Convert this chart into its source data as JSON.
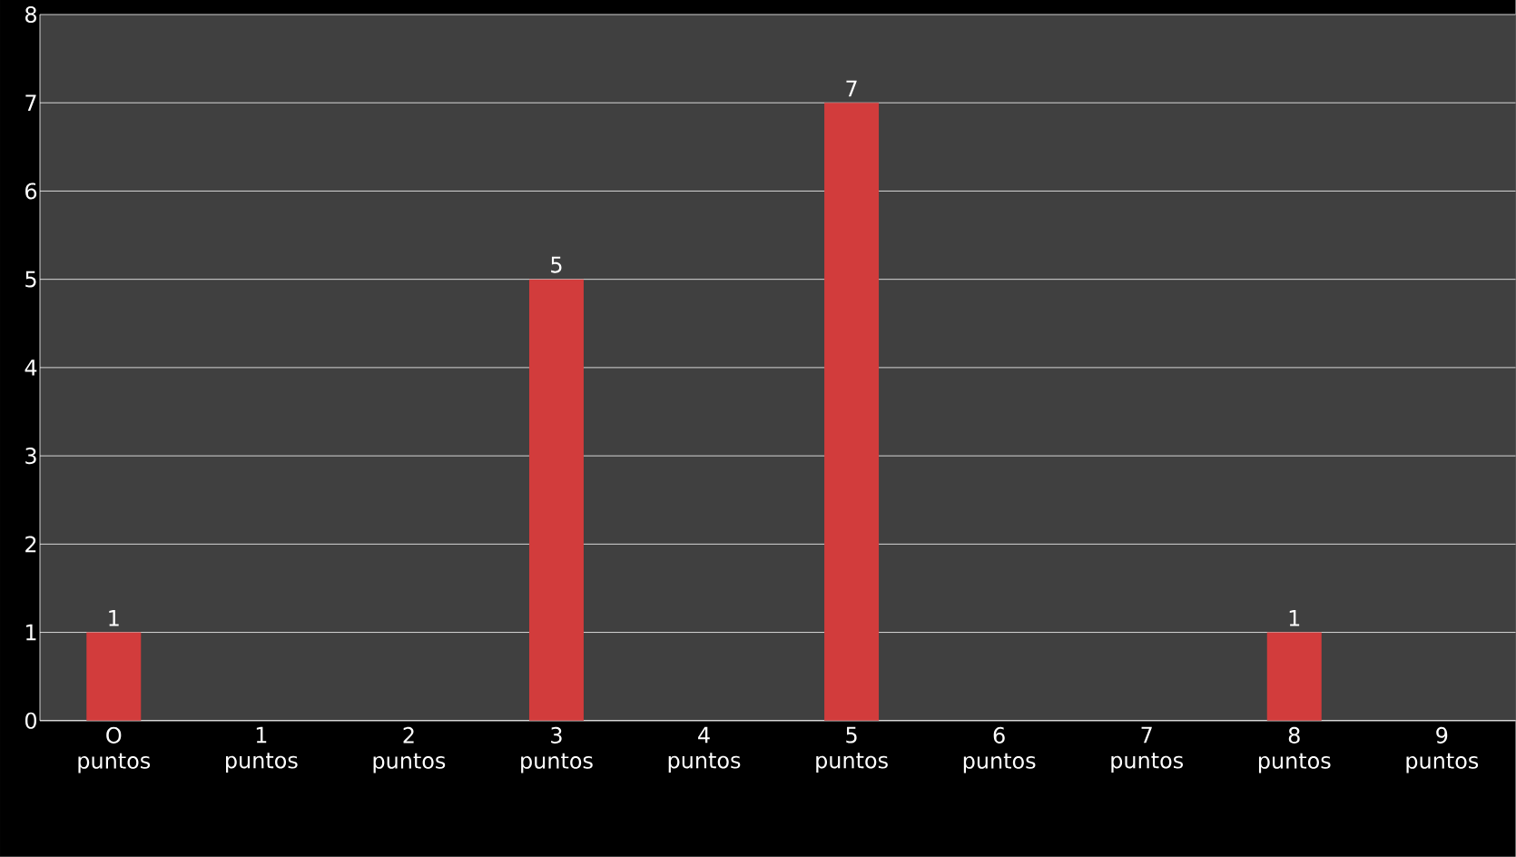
{
  "chart_data": {
    "type": "bar",
    "categories": [
      "O puntos",
      "1 puntos",
      "2 puntos",
      "3 puntos",
      "4 puntos",
      "5 puntos",
      "6 puntos",
      "7 puntos",
      "8 puntos",
      "9 puntos"
    ],
    "values": [
      1,
      0,
      0,
      5,
      0,
      7,
      0,
      0,
      1,
      0
    ],
    "value_labels": [
      "1",
      null,
      null,
      "5",
      null,
      "7",
      null,
      null,
      "1",
      null
    ],
    "color": "#d23c3c",
    "ylim": [
      0,
      8
    ],
    "yticks": [
      0,
      1,
      2,
      3,
      4,
      5,
      6,
      7,
      8
    ],
    "grid": "y"
  }
}
